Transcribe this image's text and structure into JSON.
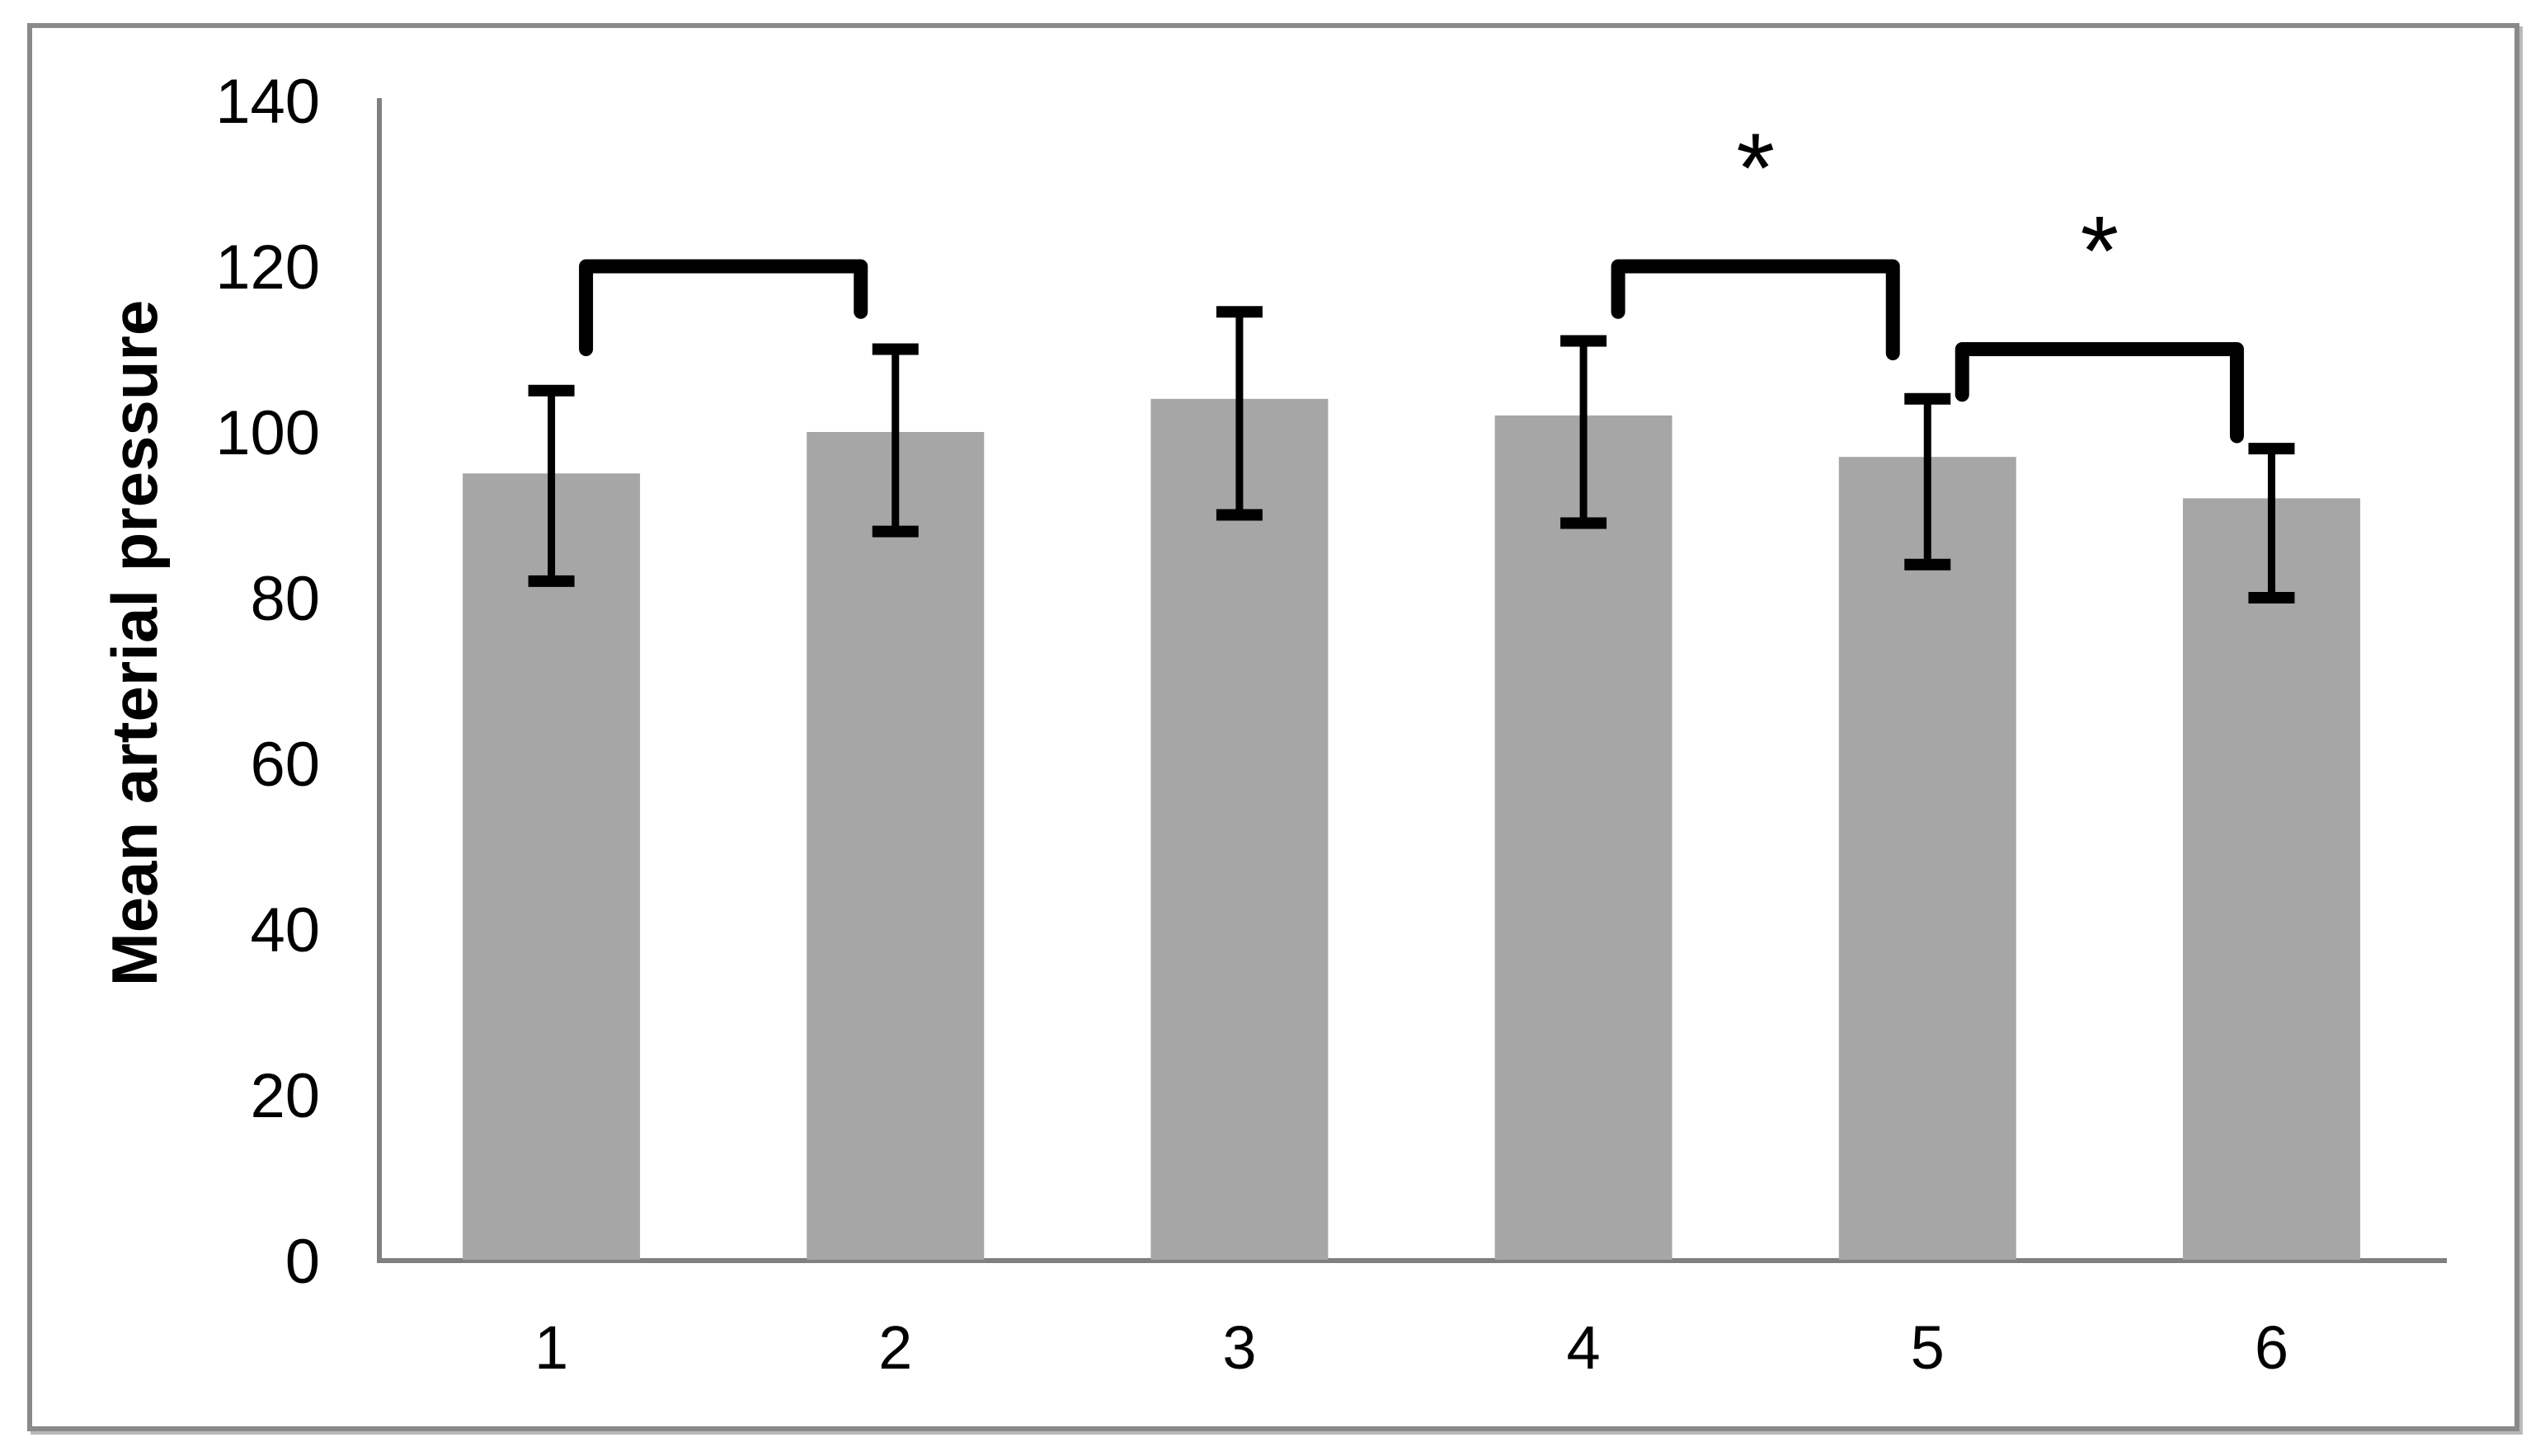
{
  "chart_data": {
    "type": "bar",
    "title": "",
    "xlabel": "",
    "ylabel": "Mean arterial pressure",
    "categories": [
      "1",
      "2",
      "3",
      "4",
      "5",
      "6"
    ],
    "values": [
      95,
      100,
      104,
      102,
      97,
      92
    ],
    "error_low": [
      82,
      88,
      90,
      89,
      84,
      80
    ],
    "error_high": [
      105,
      110,
      114.5,
      111,
      104,
      98
    ],
    "ylim": [
      0,
      140
    ],
    "yticks": [
      0,
      20,
      40,
      60,
      80,
      100,
      120,
      140
    ],
    "grid": false,
    "legend": "none",
    "bar_color": "#a6a6a6",
    "axis_color": "#808080",
    "error_bar_color": "#000000",
    "bracket_color": "#000000",
    "significance_brackets": [
      {
        "from": 0,
        "to": 1,
        "top_value": 120,
        "left_drop_value": 110,
        "right_drop_value": 114.5,
        "label": ""
      },
      {
        "from": 3,
        "to": 4,
        "top_value": 120,
        "left_drop_value": 114.5,
        "right_drop_value": 109.5,
        "label": "*"
      },
      {
        "from": 4,
        "to": 5,
        "top_value": 110,
        "left_drop_value": 104.5,
        "right_drop_value": 99.5,
        "label": "*"
      }
    ]
  }
}
